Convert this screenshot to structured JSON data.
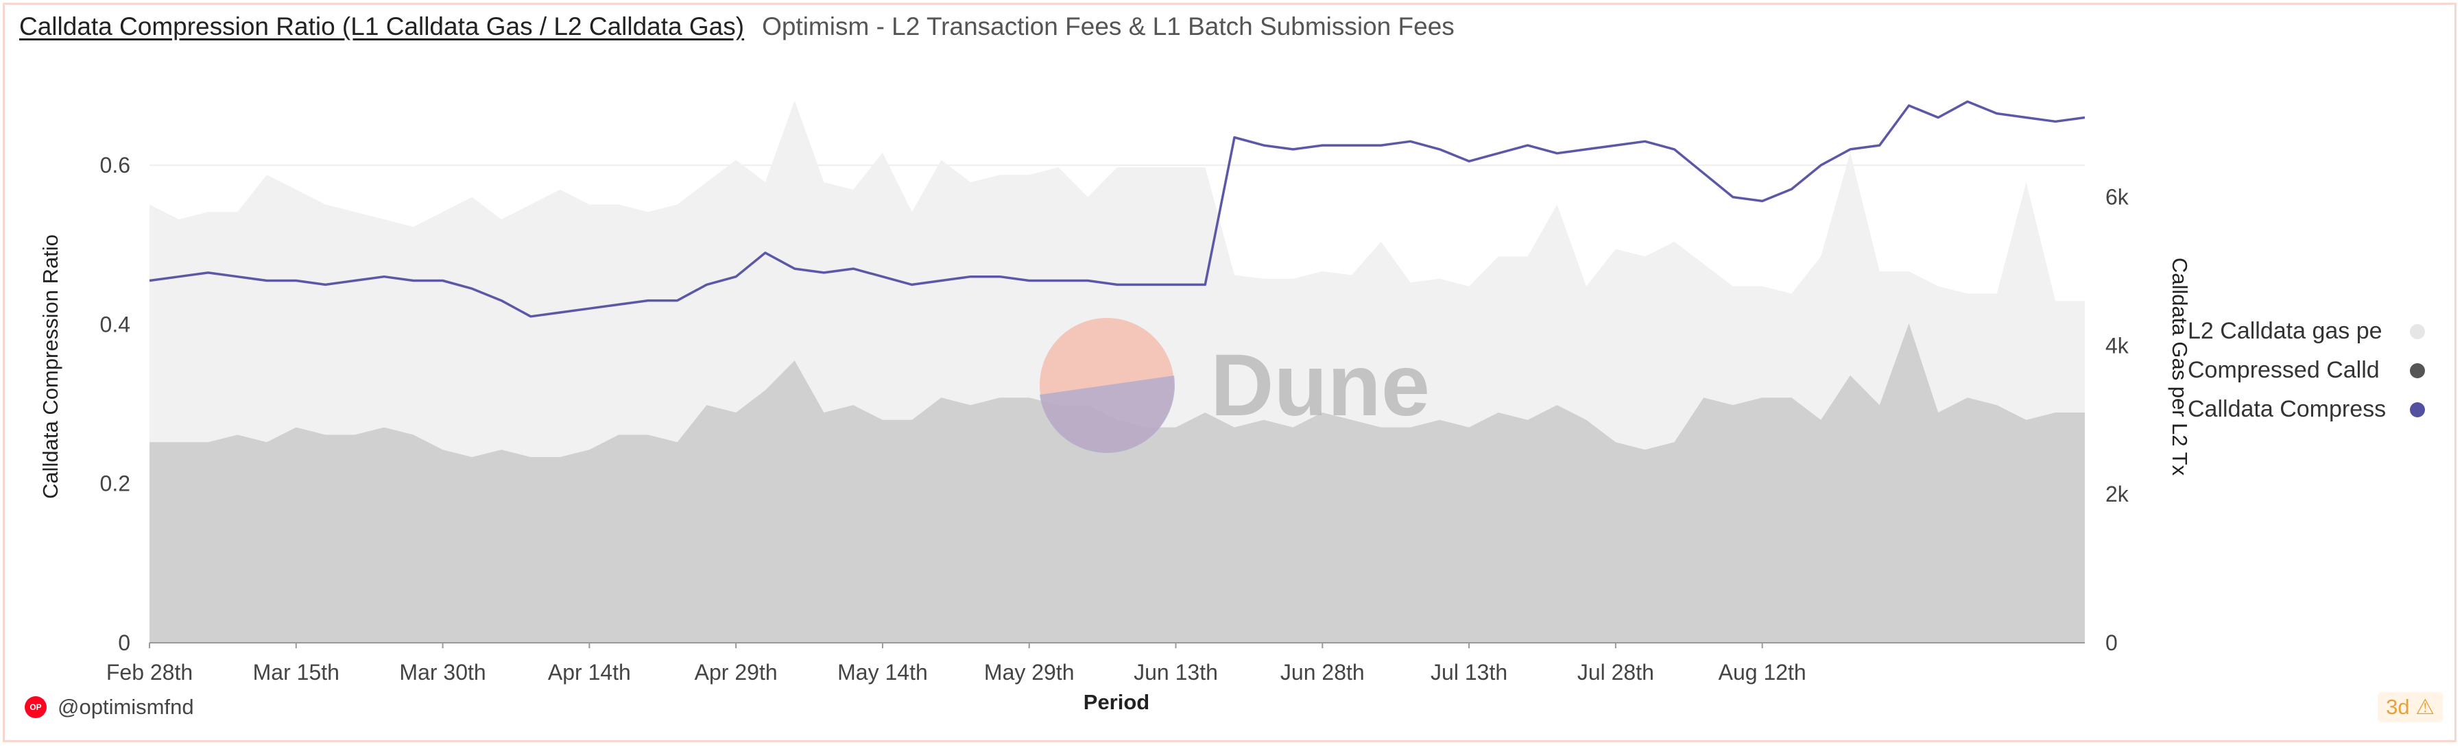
{
  "header": {
    "title": "Calldata Compression Ratio (L1 Calldata Gas / L2 Calldata Gas)",
    "subtitle": "Optimism - L2 Transaction Fees & L1 Batch Submission Fees"
  },
  "watermark": {
    "text": "Dune"
  },
  "footer": {
    "handle": "@optimismfnd",
    "freshness": "3d",
    "warning_icon": "warning-icon",
    "logo_text": "OP"
  },
  "colors": {
    "l2_area": "#f1f1f1",
    "compressed_area": "#d0d0d0",
    "ratio_line": "#5c58a8",
    "border": "#f7d7cf"
  },
  "legend": [
    {
      "label": "L2 Calldata gas pe",
      "color": "#e6e6e6"
    },
    {
      "label": "Compressed Calld",
      "color": "#555555"
    },
    {
      "label": "Calldata Compress",
      "color": "#5450a0"
    }
  ],
  "chart_data": {
    "type": "area+line",
    "xlabel": "Period",
    "ylabel_left": "Calldata Compression Ratio",
    "ylabel_right": "Calldata Gas per L2 Tx",
    "ylim_left": [
      0,
      0.7
    ],
    "ylim_right": [
      0,
      7500
    ],
    "yticks_left": [
      "0",
      "0.2",
      "0.4",
      "0.6"
    ],
    "yticks_right": [
      "0",
      "2k",
      "4k",
      "6k"
    ],
    "xtick_labels": [
      "Feb 28th",
      "Mar 15th",
      "Mar 30th",
      "Apr 14th",
      "Apr 29th",
      "May 14th",
      "May 29th",
      "Jun 13th",
      "Jun 28th",
      "Jul 13th",
      "Jul 28th",
      "Aug 12th"
    ],
    "grid": true,
    "legend_position": "right",
    "x_start": "Feb 28th",
    "x_step_days": 3,
    "series": [
      {
        "name": "L2 Calldata gas pe",
        "axis": "right",
        "type": "area",
        "values": [
          5900,
          5700,
          5800,
          5800,
          6300,
          6100,
          5900,
          5800,
          5700,
          5600,
          5800,
          6000,
          5700,
          5900,
          6100,
          5900,
          5900,
          5800,
          5900,
          6200,
          6500,
          6200,
          7300,
          6200,
          6100,
          6600,
          5800,
          6500,
          6200,
          6300,
          6300,
          6400,
          6000,
          6400,
          6400,
          6400,
          6400,
          4950,
          4900,
          4900,
          5000,
          4950,
          5400,
          4850,
          4900,
          4800,
          5200,
          5200,
          5900,
          4800,
          5300,
          5200,
          5400,
          5100,
          4800,
          4800,
          4700,
          5200,
          6600,
          5000,
          5000,
          4800,
          4700,
          4700,
          6200,
          4600,
          4600
        ]
      },
      {
        "name": "Compressed Calld",
        "axis": "right",
        "type": "area",
        "values": [
          2700,
          2700,
          2700,
          2800,
          2700,
          2900,
          2800,
          2800,
          2900,
          2800,
          2600,
          2500,
          2600,
          2500,
          2500,
          2600,
          2800,
          2800,
          2700,
          3200,
          3100,
          3400,
          3800,
          3100,
          3200,
          3000,
          3000,
          3300,
          3200,
          3300,
          3300,
          3200,
          3200,
          3000,
          2900,
          2900,
          3100,
          2900,
          3000,
          2900,
          3100,
          3000,
          2900,
          2900,
          3000,
          2900,
          3100,
          3000,
          3200,
          3000,
          2700,
          2600,
          2700,
          3300,
          3200,
          3300,
          3300,
          3000,
          3600,
          3200,
          4300,
          3100,
          3300,
          3200,
          3000,
          3100,
          3100
        ]
      },
      {
        "name": "Calldata Compress",
        "axis": "left",
        "type": "line",
        "values": [
          0.455,
          0.46,
          0.465,
          0.46,
          0.455,
          0.455,
          0.45,
          0.455,
          0.46,
          0.455,
          0.455,
          0.445,
          0.43,
          0.41,
          0.415,
          0.42,
          0.425,
          0.43,
          0.43,
          0.45,
          0.46,
          0.49,
          0.47,
          0.465,
          0.47,
          0.46,
          0.45,
          0.455,
          0.46,
          0.46,
          0.455,
          0.455,
          0.455,
          0.45,
          0.45,
          0.45,
          0.45,
          0.635,
          0.625,
          0.62,
          0.625,
          0.625,
          0.625,
          0.63,
          0.62,
          0.605,
          0.615,
          0.625,
          0.615,
          0.62,
          0.625,
          0.63,
          0.62,
          0.59,
          0.56,
          0.555,
          0.57,
          0.6,
          0.62,
          0.625,
          0.675,
          0.66,
          0.68,
          0.665,
          0.66,
          0.655,
          0.66
        ]
      }
    ]
  }
}
